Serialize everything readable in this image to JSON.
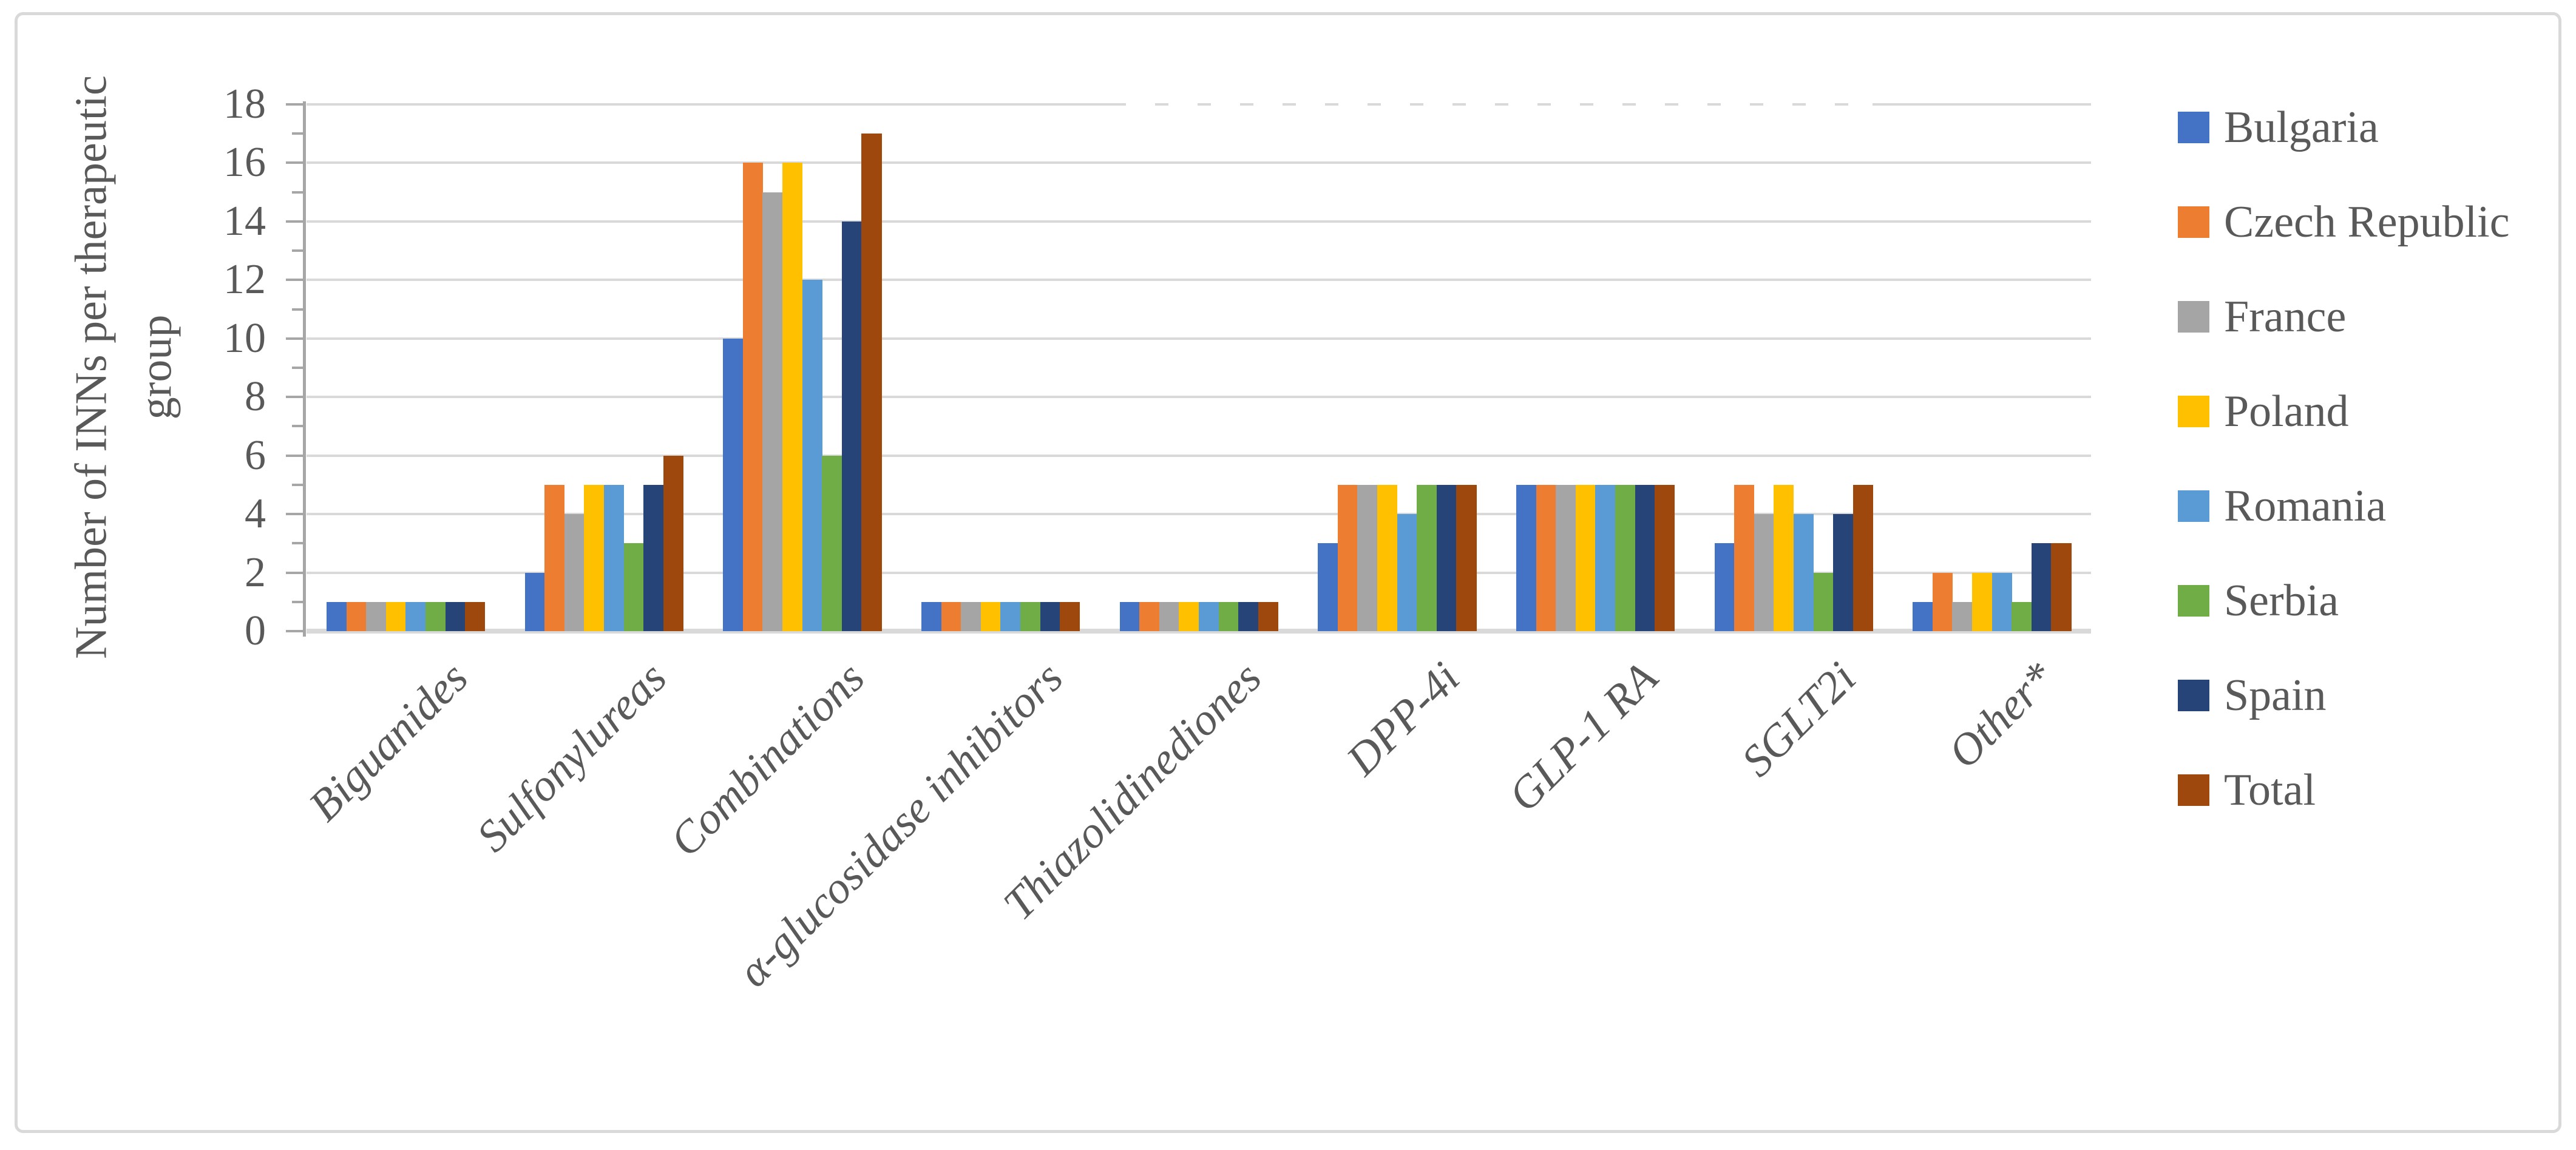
{
  "figure": {
    "background": "#FFFFFF",
    "border_color": "#D9D9D9",
    "text_color": "#595959",
    "axis_color": "#A6A6A6",
    "gridline_color": "#D9D9D9"
  },
  "chart_data": {
    "type": "bar",
    "title": "",
    "xlabel": "",
    "ylabel": "Number of INNs per therapeutic group",
    "ylim": [
      0,
      18
    ],
    "ytick_step": 2,
    "minor_tick_step": 1,
    "grid": true,
    "legend_position": "right",
    "categories": [
      "Biguanides",
      "Sulfonylureas",
      "Combinations",
      "α-glucosidase inhibitors",
      "Thiazolidinediones",
      "DPP-4i",
      "GLP-1 RA",
      "SGLT2i",
      "Other*"
    ],
    "series": [
      {
        "name": "Bulgaria",
        "color": "#4472C4",
        "values": [
          1,
          2,
          10,
          1,
          1,
          3,
          5,
          3,
          1
        ]
      },
      {
        "name": "Czech Republic",
        "color": "#ED7D31",
        "values": [
          1,
          5,
          16,
          1,
          1,
          5,
          5,
          5,
          2
        ]
      },
      {
        "name": "France",
        "color": "#A5A5A5",
        "values": [
          1,
          4,
          15,
          1,
          1,
          5,
          5,
          4,
          1
        ]
      },
      {
        "name": "Poland",
        "color": "#FFC000",
        "values": [
          1,
          5,
          16,
          1,
          1,
          5,
          5,
          5,
          2
        ]
      },
      {
        "name": "Romania",
        "color": "#5B9BD5",
        "values": [
          1,
          5,
          12,
          1,
          1,
          4,
          5,
          4,
          2
        ]
      },
      {
        "name": "Serbia",
        "color": "#70AD47",
        "values": [
          1,
          3,
          6,
          1,
          1,
          5,
          5,
          2,
          1
        ]
      },
      {
        "name": "Spain",
        "color": "#264478",
        "values": [
          1,
          5,
          14,
          1,
          1,
          5,
          5,
          4,
          3
        ]
      },
      {
        "name": "Total",
        "color": "#9E480E",
        "values": [
          1,
          6,
          17,
          1,
          1,
          5,
          5,
          5,
          3
        ]
      }
    ]
  }
}
